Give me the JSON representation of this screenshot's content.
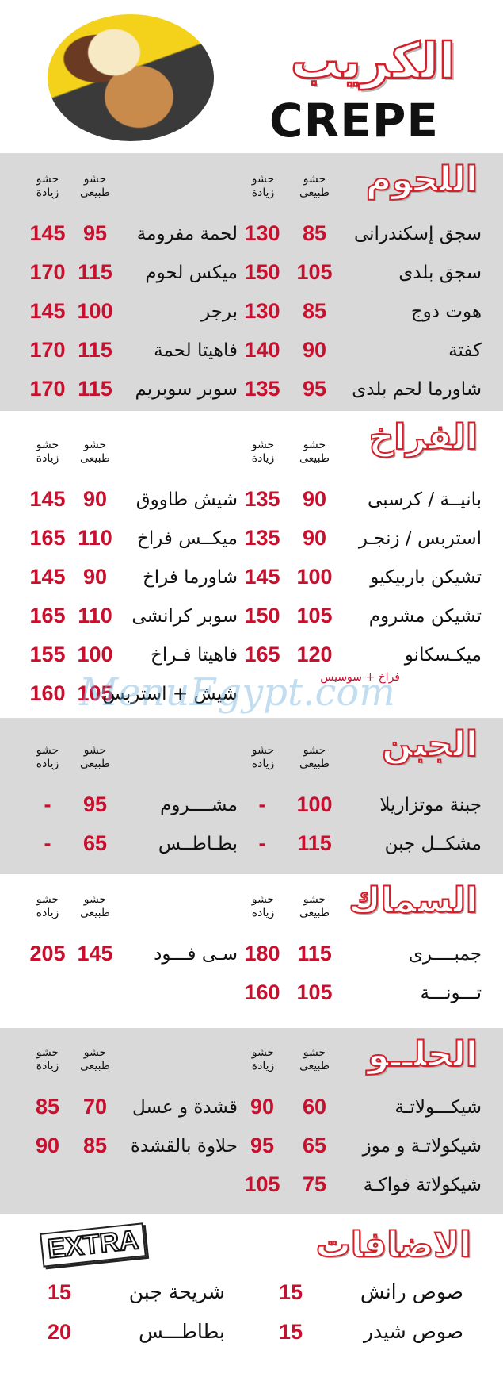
{
  "header": {
    "title_ar": "الكريب",
    "title_en": "CREPE"
  },
  "column_labels": {
    "regular": "حشو طبيعى",
    "extra": "حشو زيادة"
  },
  "watermark": "MenuEgypt.com",
  "colors": {
    "accent": "#d4202a",
    "price": "#c8102e",
    "band": "#d9d9d9"
  },
  "sections": [
    {
      "title": "اللحوم",
      "rows": [
        {
          "right": {
            "name": "سجق إسكندرانى",
            "regular": "85",
            "extra": "130"
          },
          "left": {
            "name": "لحمة مفرومة",
            "regular": "95",
            "extra": "145"
          }
        },
        {
          "right": {
            "name": "سجق بلدى",
            "regular": "105",
            "extra": "150"
          },
          "left": {
            "name": "ميكس لحوم",
            "regular": "115",
            "extra": "170"
          }
        },
        {
          "right": {
            "name": "هوت دوج",
            "regular": "85",
            "extra": "130"
          },
          "left": {
            "name": "برجر",
            "regular": "100",
            "extra": "145"
          }
        },
        {
          "right": {
            "name": "كفتة",
            "regular": "90",
            "extra": "140"
          },
          "left": {
            "name": "فاهيتا لحمة",
            "regular": "115",
            "extra": "170"
          }
        },
        {
          "right": {
            "name": "شاورما لحم بلدى",
            "regular": "95",
            "extra": "135"
          },
          "left": {
            "name": "سوبر سوبريم",
            "regular": "115",
            "extra": "170"
          }
        }
      ]
    },
    {
      "title": "الفراخ",
      "note": "فراخ + سوسيس",
      "rows": [
        {
          "right": {
            "name": "بانيــة / كرسبى",
            "regular": "90",
            "extra": "135"
          },
          "left": {
            "name": "شيش طاووق",
            "regular": "90",
            "extra": "145"
          }
        },
        {
          "right": {
            "name": "استربس / زنجـر",
            "regular": "90",
            "extra": "135"
          },
          "left": {
            "name": "ميكــس فراخ",
            "regular": "110",
            "extra": "165"
          }
        },
        {
          "right": {
            "name": "تشيكن باربيكيو",
            "regular": "100",
            "extra": "145"
          },
          "left": {
            "name": "شاورما فراخ",
            "regular": "90",
            "extra": "145"
          }
        },
        {
          "right": {
            "name": "تشيكن مشروم",
            "regular": "105",
            "extra": "150"
          },
          "left": {
            "name": "سوبر كرانشى",
            "regular": "110",
            "extra": "165"
          }
        },
        {
          "right": {
            "name": "ميكـسكانو",
            "regular": "120",
            "extra": "165"
          },
          "left": {
            "name": "فاهيتا فـراخ",
            "regular": "100",
            "extra": "155"
          }
        },
        {
          "right": {
            "name": "",
            "regular": "",
            "extra": ""
          },
          "left": {
            "name": "شيش + استربس",
            "regular": "105",
            "extra": "160"
          }
        }
      ]
    },
    {
      "title": "الجبن",
      "rows": [
        {
          "right": {
            "name": "جبنة موتزاريلا",
            "regular": "100",
            "extra": "-"
          },
          "left": {
            "name": "مشــــروم",
            "regular": "95",
            "extra": "-"
          }
        },
        {
          "right": {
            "name": "مشكــل جبن",
            "regular": "115",
            "extra": "-"
          },
          "left": {
            "name": "بطـاطــس",
            "regular": "65",
            "extra": "-"
          }
        }
      ]
    },
    {
      "title": "السماك",
      "rows": [
        {
          "right": {
            "name": "جمبــــرى",
            "regular": "115",
            "extra": "180"
          },
          "left": {
            "name": "سـى فـــود",
            "regular": "145",
            "extra": "205"
          }
        },
        {
          "right": {
            "name": "تـــونـــة",
            "regular": "105",
            "extra": "160"
          },
          "left": {
            "name": "",
            "regular": "",
            "extra": ""
          }
        }
      ]
    },
    {
      "title": "الحلــو",
      "rows": [
        {
          "right": {
            "name": "شيكـــولاتـة",
            "regular": "60",
            "extra": "90"
          },
          "left": {
            "name": "قشدة و عسل",
            "regular": "70",
            "extra": "85"
          }
        },
        {
          "right": {
            "name": "شيكولاتـة و موز",
            "regular": "65",
            "extra": "95"
          },
          "left": {
            "name": "حلاوة بالقشدة",
            "regular": "85",
            "extra": "90"
          }
        },
        {
          "right": {
            "name": "شيكولاتة فواكـة",
            "regular": "75",
            "extra": "105"
          },
          "left": {
            "name": "",
            "regular": "",
            "extra": ""
          }
        }
      ]
    }
  ],
  "extras": {
    "title": "الاضافات",
    "badge": "EXTRA",
    "rows": [
      {
        "right": {
          "name": "صوص رانش",
          "price": "15"
        },
        "left": {
          "name": "شريحة جبن",
          "price": "15"
        }
      },
      {
        "right": {
          "name": "صوص شيدر",
          "price": "15"
        },
        "left": {
          "name": "بطاطـــس",
          "price": "20"
        }
      }
    ]
  }
}
